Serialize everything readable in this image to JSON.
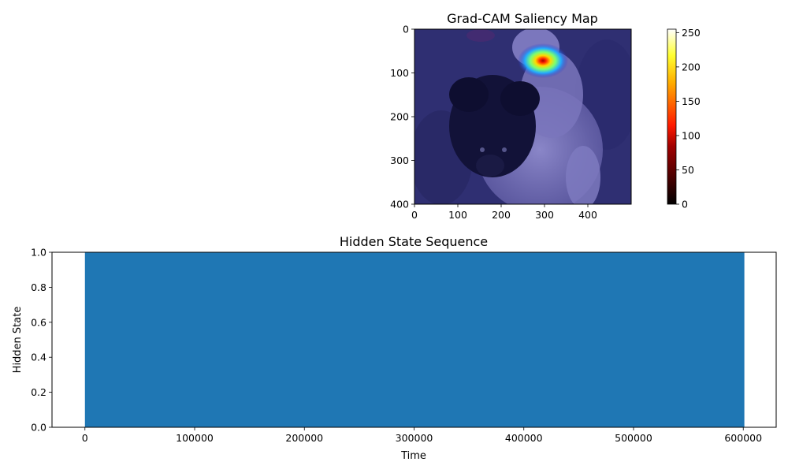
{
  "chart_data": [
    {
      "type": "heatmap",
      "title": "Grad-CAM Saliency Map",
      "xlabel": "",
      "ylabel": "",
      "xlim": [
        0,
        500
      ],
      "ylim": [
        400,
        0
      ],
      "x_ticks": [
        "0",
        "100",
        "200",
        "300",
        "400"
      ],
      "y_ticks": [
        "0",
        "100",
        "200",
        "300",
        "400"
      ],
      "colorbar": {
        "range": [
          0,
          255
        ],
        "ticks": [
          "0",
          "50",
          "100",
          "150",
          "200",
          "250"
        ],
        "colormap": "hot"
      },
      "hotspot": {
        "x": 295,
        "y": 75,
        "peak": 255
      }
    },
    {
      "type": "area",
      "title": "Hidden State Sequence",
      "xlabel": "Time",
      "ylabel": "Hidden State",
      "xlim": [
        -30000,
        630000
      ],
      "ylim": [
        0,
        1
      ],
      "x_ticks": [
        "0",
        "100000",
        "200000",
        "300000",
        "400000",
        "500000",
        "600000"
      ],
      "y_ticks": [
        "0.0",
        "0.2",
        "0.4",
        "0.6",
        "0.8",
        "1.0"
      ],
      "series": [
        {
          "x": [
            0,
            601000
          ],
          "values": [
            1,
            1
          ],
          "color": "#1f77b4"
        }
      ]
    }
  ]
}
